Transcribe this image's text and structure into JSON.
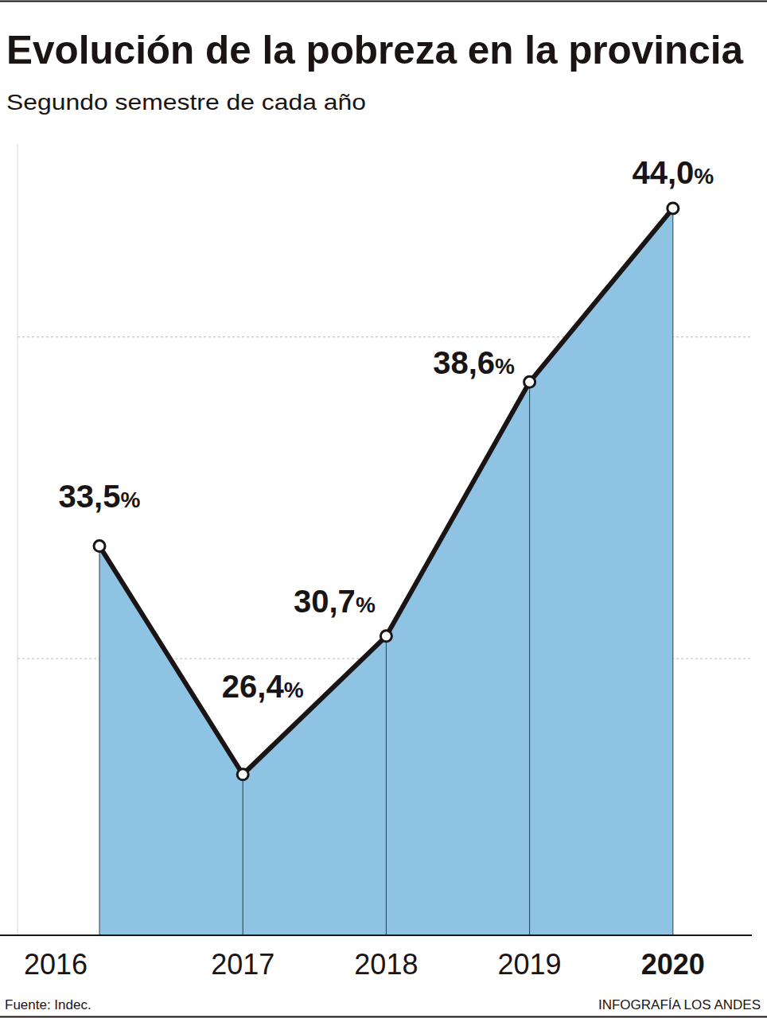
{
  "chart_data": {
    "type": "area",
    "title": "Evolución de la pobreza en la provincia",
    "subtitle": "Segundo semestre de cada año",
    "categories": [
      "2016",
      "2017",
      "2018",
      "2019",
      "2020"
    ],
    "values": [
      33.5,
      26.4,
      30.7,
      38.6,
      44.0
    ],
    "value_labels": [
      "33,5%",
      "26,4%",
      "30,7%",
      "38,6%",
      "44,0%"
    ],
    "color": "#8ec3e3",
    "ylim": [
      21.4,
      46
    ],
    "yticks": [
      30,
      40
    ],
    "grid": true,
    "data_labels": true,
    "tick_labels": "x",
    "marker": "circle",
    "source": "Fuente: Indec.",
    "credit": "INFOGRAFÍA LOS ANDES"
  }
}
